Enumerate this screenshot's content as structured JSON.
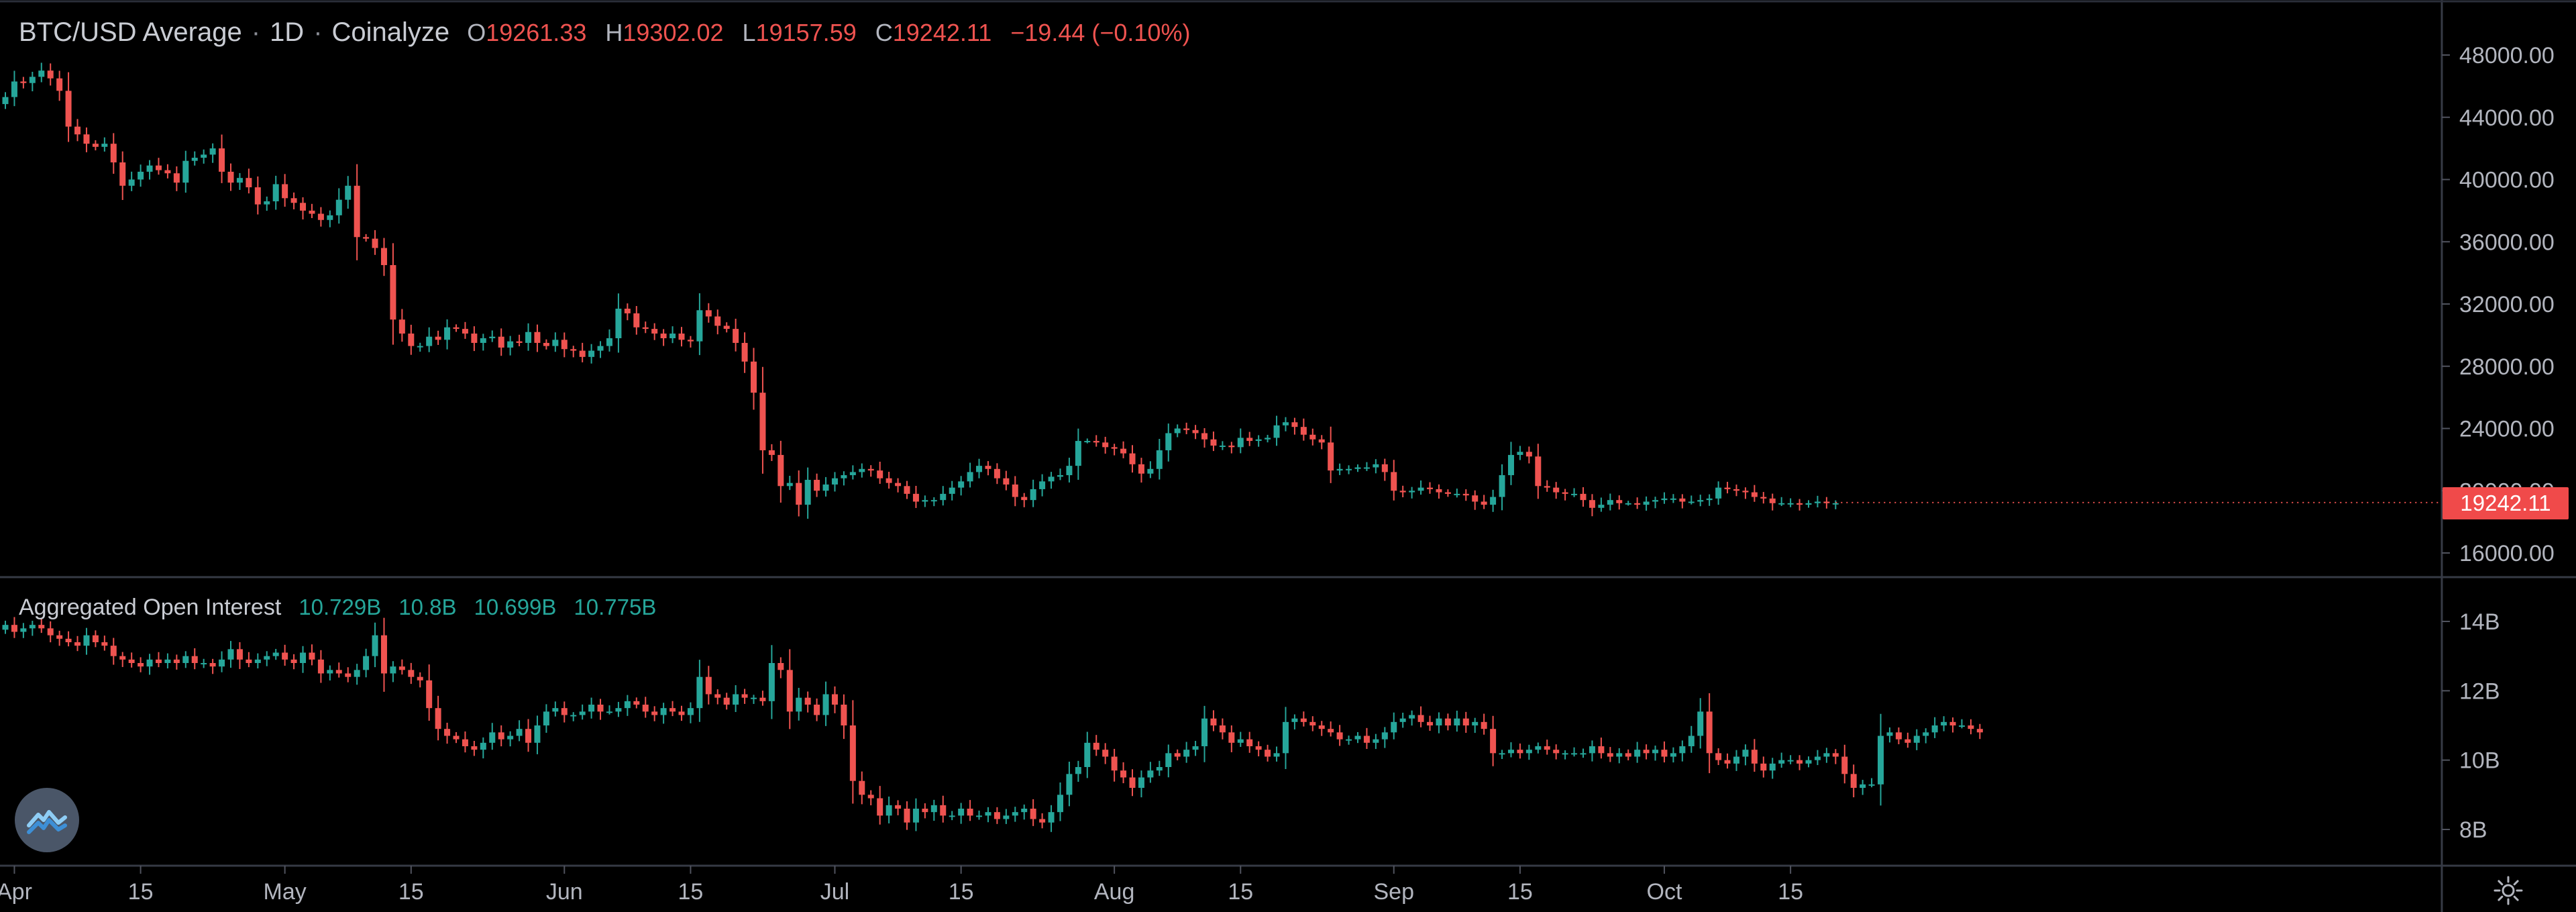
{
  "header": {
    "symbol": "BTC/USD Average",
    "interval": "1D",
    "source": "Coinalyze",
    "o_label": "O",
    "o_value": "19261.33",
    "h_label": "H",
    "h_value": "19302.02",
    "l_label": "L",
    "l_value": "19157.59",
    "c_label": "C",
    "c_value": "19242.11",
    "change": "−19.44 (−0.10%)"
  },
  "oi_header": {
    "title": "Aggregated Open Interest",
    "v1": "10.729B",
    "v2": "10.8B",
    "v3": "10.699B",
    "v4": "10.775B"
  },
  "last_price_badge": "19242.11",
  "logo_icon": "coinalyze-logo-icon",
  "settings_icon": "gear-icon",
  "colors": {
    "up": "#26a69a",
    "down": "#ef5350",
    "background": "#000000",
    "grid": "#2a2e39",
    "text": "#b2b5be"
  },
  "chart_data": [
    {
      "type": "candlestick",
      "title": "BTC/USD Average · 1D · Coinalyze",
      "x_start": "2022-03-31",
      "ylim": [
        15000,
        50000
      ],
      "yticks": [
        16000,
        20000,
        24000,
        28000,
        32000,
        36000,
        40000,
        44000,
        48000
      ],
      "ytick_labels": [
        "16000.00",
        "20000.00",
        "24000.00",
        "28000.00",
        "32000.00",
        "36000.00",
        "40000.00",
        "44000.00",
        "48000.00"
      ],
      "last_value": 19242.11,
      "closes": [
        45300,
        46300,
        46200,
        46600,
        47000,
        46500,
        45700,
        43400,
        42900,
        42300,
        42100,
        42300,
        41100,
        39600,
        40000,
        40500,
        40900,
        40600,
        40400,
        39800,
        41200,
        41400,
        41600,
        42000,
        40500,
        39800,
        40100,
        39500,
        38400,
        38600,
        39700,
        38800,
        38500,
        38000,
        37800,
        37400,
        37700,
        38700,
        39600,
        36300,
        36200,
        35600,
        34500,
        31000,
        30100,
        29300,
        29300,
        29900,
        29700,
        30500,
        30400,
        30100,
        29500,
        29800,
        29900,
        29200,
        29600,
        29500,
        30200,
        29500,
        29300,
        29700,
        29100,
        29000,
        28600,
        29000,
        29300,
        29800,
        31700,
        31400,
        30500,
        30400,
        30100,
        29800,
        30100,
        29700,
        29600,
        31600,
        31200,
        30600,
        30400,
        29500,
        28300,
        26300,
        22600,
        22300,
        20300,
        20500,
        19100,
        20700,
        20000,
        20400,
        20800,
        21000,
        21200,
        21400,
        21300,
        20800,
        20500,
        20300,
        19800,
        19300,
        19400,
        19400,
        19800,
        20200,
        20600,
        21200,
        21600,
        21400,
        20800,
        20400,
        19600,
        19400,
        20100,
        20600,
        20900,
        21000,
        21600,
        23200,
        23200,
        23100,
        22800,
        22700,
        22400,
        21700,
        21100,
        21400,
        22600,
        23700,
        24000,
        23900,
        23700,
        23300,
        22900,
        22900,
        22800,
        23400,
        23200,
        23300,
        23400,
        24200,
        24400,
        24100,
        23600,
        23300,
        23100,
        21300,
        21400,
        21400,
        21500,
        21500,
        21700,
        21200,
        20000,
        19900,
        20000,
        20200,
        20100,
        19900,
        19800,
        19800,
        19700,
        19300,
        19100,
        19600,
        21000,
        22300,
        22500,
        22200,
        20300,
        20200,
        19900,
        19800,
        19800,
        19400,
        18900,
        19100,
        19400,
        19200,
        19200,
        19100,
        19300,
        19400,
        19500,
        19500,
        19300,
        19300,
        19400,
        19500,
        20200,
        20100,
        20000,
        19900,
        19600,
        19500,
        19200,
        19200,
        19200,
        19100,
        19200,
        19300,
        19200,
        19200
      ],
      "opens_from_prev_close": true
    },
    {
      "type": "candlestick",
      "title": "Aggregated Open Interest",
      "x_start": "2022-03-31",
      "ylim": [
        7.5,
        14.5
      ],
      "yticks": [
        8,
        10,
        12,
        14
      ],
      "ytick_labels": [
        "8B",
        "10B",
        "12B",
        "14B"
      ],
      "last_value": 10.775,
      "closes": [
        13.9,
        13.7,
        13.8,
        13.9,
        13.8,
        13.6,
        13.5,
        13.4,
        13.3,
        13.6,
        13.4,
        13.3,
        13.0,
        12.9,
        12.8,
        12.7,
        12.9,
        12.8,
        12.9,
        12.8,
        13.0,
        12.8,
        12.8,
        12.7,
        12.9,
        13.2,
        12.9,
        12.8,
        12.9,
        13.0,
        13.1,
        12.9,
        12.8,
        13.1,
        12.9,
        12.5,
        12.6,
        12.5,
        12.4,
        12.6,
        13.0,
        13.6,
        12.5,
        12.7,
        12.6,
        12.4,
        12.3,
        11.5,
        10.9,
        10.7,
        10.6,
        10.4,
        10.3,
        10.5,
        10.8,
        10.6,
        10.7,
        10.9,
        10.5,
        11.0,
        11.4,
        11.5,
        11.3,
        11.3,
        11.4,
        11.6,
        11.4,
        11.4,
        11.5,
        11.7,
        11.6,
        11.4,
        11.3,
        11.5,
        11.4,
        11.3,
        11.5,
        12.4,
        11.9,
        11.8,
        11.6,
        11.9,
        11.8,
        11.8,
        11.7,
        12.8,
        12.6,
        11.4,
        11.8,
        11.6,
        11.3,
        11.9,
        11.6,
        11.0,
        9.4,
        9.0,
        8.9,
        8.4,
        8.7,
        8.6,
        8.2,
        8.6,
        8.5,
        8.7,
        8.4,
        8.4,
        8.6,
        8.4,
        8.4,
        8.5,
        8.3,
        8.4,
        8.5,
        8.6,
        8.3,
        8.2,
        8.5,
        9.0,
        9.6,
        9.8,
        10.5,
        10.3,
        10.1,
        9.7,
        9.5,
        9.2,
        9.5,
        9.7,
        9.8,
        10.2,
        10.1,
        10.3,
        10.4,
        11.2,
        11.0,
        10.8,
        10.5,
        10.6,
        10.4,
        10.3,
        10.1,
        10.2,
        11.1,
        11.2,
        11.1,
        11.0,
        10.9,
        10.8,
        10.6,
        10.6,
        10.7,
        10.5,
        10.6,
        10.8,
        11.1,
        11.2,
        11.3,
        11.1,
        11.0,
        11.2,
        11.0,
        11.2,
        11.0,
        11.1,
        10.9,
        10.2,
        10.2,
        10.3,
        10.2,
        10.3,
        10.4,
        10.3,
        10.2,
        10.2,
        10.2,
        10.2,
        10.4,
        10.2,
        10.1,
        10.2,
        10.1,
        10.3,
        10.2,
        10.3,
        10.1,
        10.2,
        10.4,
        10.7,
        11.4,
        10.2,
        10.0,
        9.9,
        10.1,
        10.3,
        9.9,
        9.7,
        9.9,
        10.0,
        10.0,
        9.9,
        10.0,
        10.1,
        10.2,
        10.1,
        9.6,
        9.2,
        9.3,
        9.3,
        10.7,
        10.8,
        10.6,
        10.5,
        10.7,
        10.8,
        11.0,
        11.1,
        11.0,
        11.0,
        10.9,
        10.8
      ]
    }
  ],
  "x_axis": {
    "start": "2022-03-31",
    "ticks": [
      {
        "date": "2022-04-01",
        "label": "Apr"
      },
      {
        "date": "2022-04-15",
        "label": "15"
      },
      {
        "date": "2022-05-01",
        "label": "May"
      },
      {
        "date": "2022-05-15",
        "label": "15"
      },
      {
        "date": "2022-06-01",
        "label": "Jun"
      },
      {
        "date": "2022-06-15",
        "label": "15"
      },
      {
        "date": "2022-07-01",
        "label": "Jul"
      },
      {
        "date": "2022-07-15",
        "label": "15"
      },
      {
        "date": "2022-08-01",
        "label": "Aug"
      },
      {
        "date": "2022-08-15",
        "label": "15"
      },
      {
        "date": "2022-09-01",
        "label": "Sep"
      },
      {
        "date": "2022-09-15",
        "label": "15"
      },
      {
        "date": "2022-10-01",
        "label": "Oct"
      },
      {
        "date": "2022-10-15",
        "label": "15"
      }
    ]
  }
}
